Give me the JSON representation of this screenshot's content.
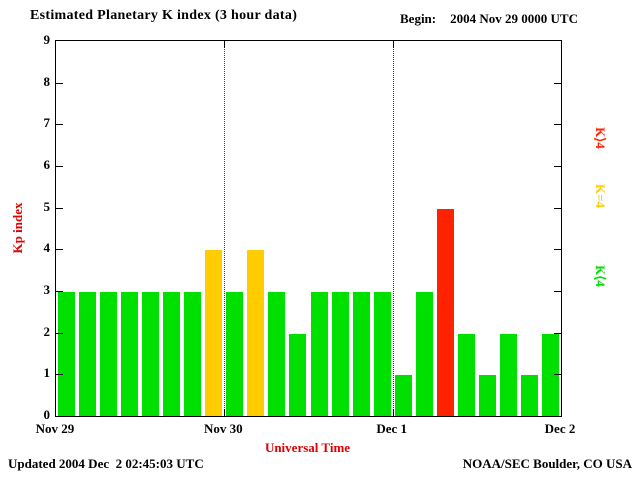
{
  "title": "Estimated Planetary K index (3 hour data)",
  "begin": {
    "label": "Begin:",
    "value": "2004 Nov 29 0000 UTC"
  },
  "footer": {
    "updated": "Updated 2004 Dec  2 02:45:03 UTC",
    "source": "NOAA/SEC Boulder, CO USA"
  },
  "chart_data": {
    "type": "bar",
    "title": "Estimated Planetary K index (3 hour data)",
    "xlabel": "Universal Time",
    "ylabel": "Kp index",
    "ylim": [
      0,
      9
    ],
    "y_ticks": [
      0,
      1,
      2,
      3,
      4,
      5,
      6,
      7,
      8,
      9
    ],
    "x_tick_labels": [
      "Nov 29",
      "Nov 30",
      "Dec 1",
      "Dec 2"
    ],
    "bar_interval_hours": 3,
    "bars_per_day": 8,
    "values": [
      3,
      3,
      3,
      3,
      3,
      3,
      3,
      4,
      3,
      4,
      3,
      2,
      3,
      3,
      3,
      3,
      1,
      3,
      5,
      2,
      1,
      2,
      1,
      2
    ],
    "color_rules": {
      "below_4": "#00e000",
      "equal_4": "#ffcc00",
      "above_4": "#ff2200"
    },
    "gridlines_at_day_boundaries": [
      "Nov 30",
      "Dec 1"
    ],
    "legend": [
      {
        "label": "K⟩4",
        "color": "#ff2200"
      },
      {
        "label": "K=4",
        "color": "#ffcc00"
      },
      {
        "label": "K⟨4",
        "color": "#00e000"
      }
    ],
    "legend_position": "right"
  }
}
